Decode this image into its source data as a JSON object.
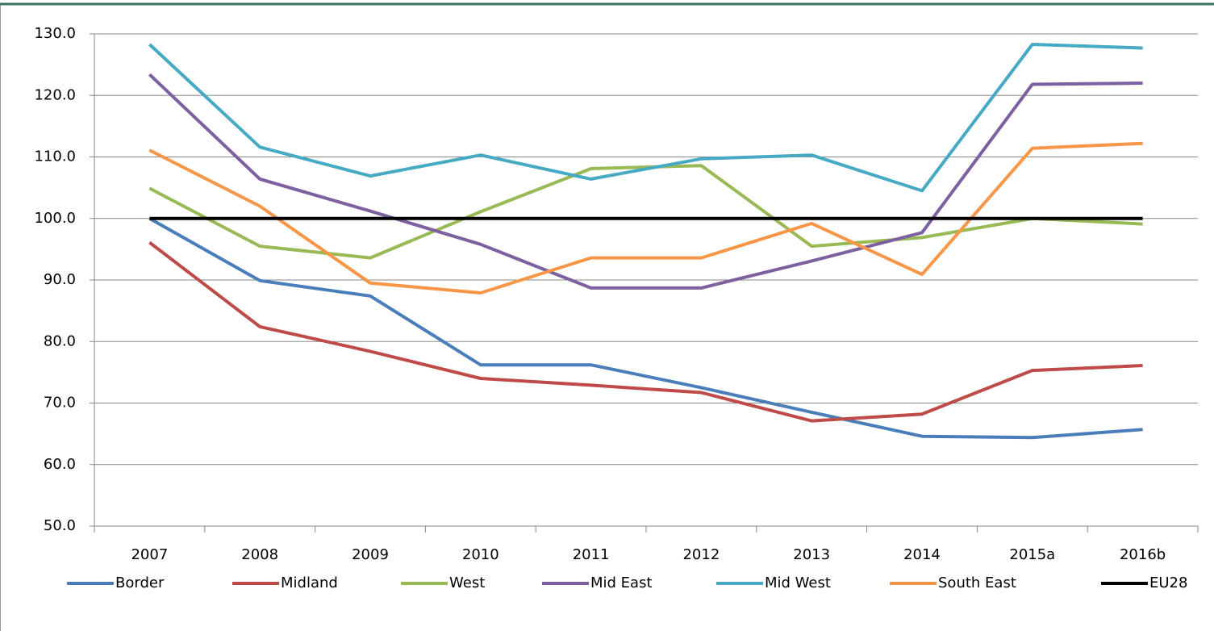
{
  "chart_data": {
    "type": "line",
    "categories": [
      "2007",
      "2008",
      "2009",
      "2010",
      "2011",
      "2012",
      "2013",
      "2014",
      "2015a",
      "2016b"
    ],
    "series": [
      {
        "name": "Border",
        "color": "#4a7ebb",
        "values": [
          100.0,
          89.9,
          87.4,
          76.2,
          76.2,
          72.5,
          68.5,
          64.6,
          64.4,
          65.7
        ]
      },
      {
        "name": "Midland",
        "color": "#be4b48",
        "values": [
          96.1,
          82.4,
          78.4,
          74.0,
          72.9,
          71.7,
          67.1,
          68.2,
          75.3,
          76.1
        ]
      },
      {
        "name": "West",
        "color": "#98b954",
        "values": [
          104.9,
          95.5,
          93.6,
          101.1,
          108.1,
          108.6,
          95.5,
          96.9,
          100.0,
          99.1
        ]
      },
      {
        "name": "Mid East",
        "color": "#7d60a0",
        "values": [
          123.4,
          106.4,
          101.2,
          95.8,
          88.7,
          88.7,
          93.1,
          97.7,
          121.8,
          122.0
        ]
      },
      {
        "name": "Mid West",
        "color": "#46aac5",
        "values": [
          128.3,
          111.6,
          106.9,
          110.3,
          106.4,
          109.7,
          110.3,
          104.5,
          128.3,
          127.7
        ]
      },
      {
        "name": "South East",
        "color": "#f79646",
        "values": [
          111.1,
          102.0,
          89.5,
          87.9,
          93.6,
          93.6,
          99.2,
          90.9,
          111.4,
          112.2
        ]
      },
      {
        "name": "EU28",
        "color": "#000000",
        "values": [
          100,
          100,
          100,
          100,
          100,
          100,
          100,
          100,
          100,
          100
        ]
      }
    ],
    "ylim": [
      50,
      130
    ],
    "yticks": [
      {
        "value": 50,
        "label": "50.0"
      },
      {
        "value": 60,
        "label": "60.0"
      },
      {
        "value": 70,
        "label": "70.0"
      },
      {
        "value": 80,
        "label": "80.0"
      },
      {
        "value": 90,
        "label": "90.0"
      },
      {
        "value": 100,
        "label": "100.0"
      },
      {
        "value": 110,
        "label": "110.0"
      },
      {
        "value": 120,
        "label": "120.0"
      },
      {
        "value": 130,
        "label": "130.0"
      }
    ],
    "grid": true,
    "legend": "bottom"
  }
}
